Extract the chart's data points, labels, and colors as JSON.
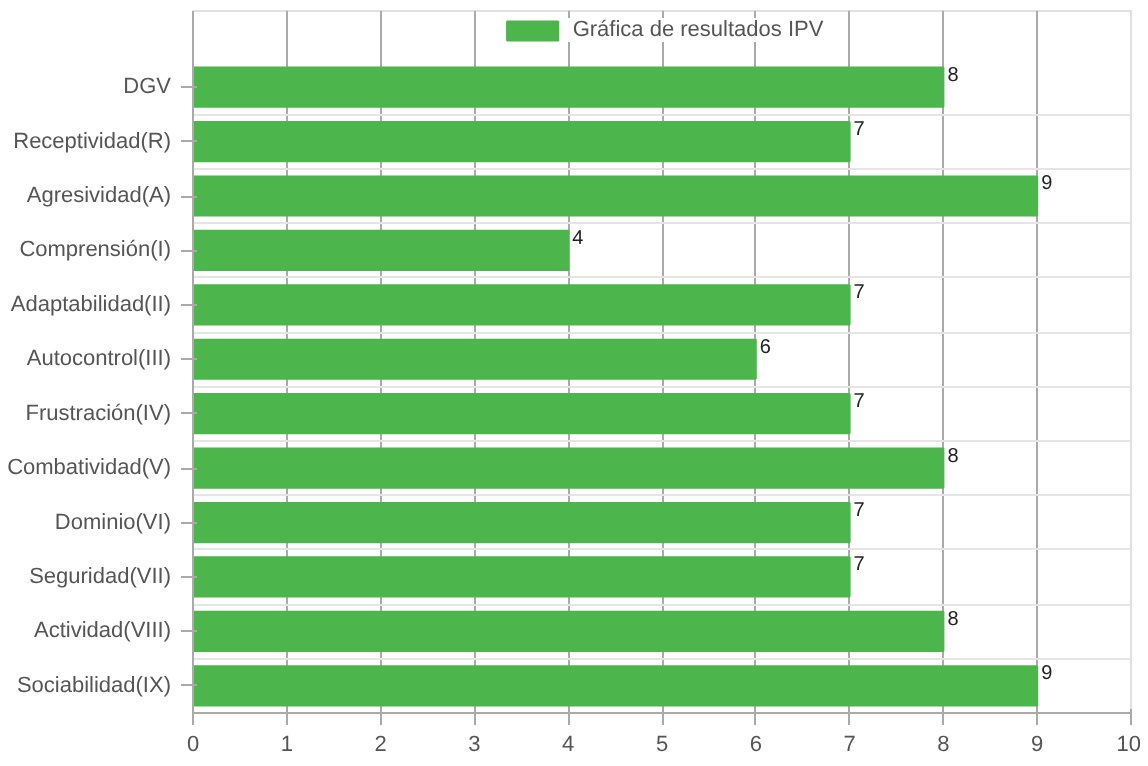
{
  "chart_data": {
    "type": "bar",
    "orientation": "horizontal",
    "categories": [
      "DGV",
      "Receptividad(R)",
      "Agresividad(A)",
      "Comprensión(I)",
      "Adaptabilidad(II)",
      "Autocontrol(III)",
      "Frustración(IV)",
      "Combatividad(V)",
      "Dominio(VI)",
      "Seguridad(VII)",
      "Actividad(VIII)",
      "Sociabilidad(IX)"
    ],
    "series": [
      {
        "name": "Gráfica de resultados IPV",
        "color": "#4cb64c",
        "values": [
          8,
          7,
          9,
          4,
          7,
          6,
          7,
          8,
          7,
          7,
          8,
          9
        ]
      }
    ],
    "xlim": [
      0,
      10
    ],
    "xticks": [
      0,
      1,
      2,
      3,
      4,
      5,
      6,
      7,
      8,
      9,
      10
    ],
    "grid": true,
    "legend": "top",
    "data_labels": true
  }
}
